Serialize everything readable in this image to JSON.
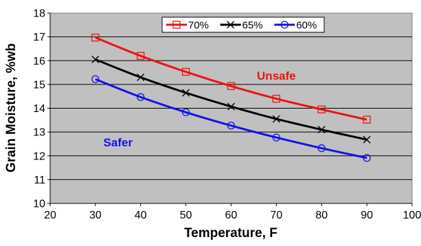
{
  "chart_data": {
    "type": "line",
    "xlabel": "Temperature, F",
    "ylabel": "Grain Moisture, %wb",
    "xlim": [
      20,
      100
    ],
    "ylim": [
      10,
      18
    ],
    "x_ticks": [
      20,
      30,
      40,
      50,
      60,
      70,
      80,
      90,
      100
    ],
    "y_ticks": [
      10,
      11,
      12,
      13,
      14,
      15,
      16,
      17,
      18
    ],
    "grid": "horizontal",
    "plot_background": "#c0c0c0",
    "legend_position": "top-center",
    "series": [
      {
        "name": "70%",
        "color": "#ee1111",
        "marker": "square",
        "x": [
          30,
          40,
          50,
          60,
          70,
          80,
          90
        ],
        "values": [
          16.97,
          16.2,
          15.53,
          14.93,
          14.4,
          13.95,
          13.52
        ]
      },
      {
        "name": "65%",
        "color": "#000000",
        "marker": "x",
        "x": [
          30,
          40,
          50,
          60,
          70,
          80,
          90
        ],
        "values": [
          16.05,
          15.3,
          14.65,
          14.07,
          13.55,
          13.1,
          12.68
        ]
      },
      {
        "name": "60%",
        "color": "#1111ee",
        "marker": "circle",
        "x": [
          30,
          40,
          50,
          60,
          70,
          80,
          90
        ],
        "values": [
          15.22,
          14.47,
          13.83,
          13.27,
          12.77,
          12.32,
          11.91
        ]
      }
    ],
    "annotations": [
      {
        "text": "Unsafe",
        "x": 70,
        "y": 15.2,
        "color": "#ee1111"
      },
      {
        "text": "Safer",
        "x": 35,
        "y": 12.4,
        "color": "#1111ee"
      }
    ]
  }
}
